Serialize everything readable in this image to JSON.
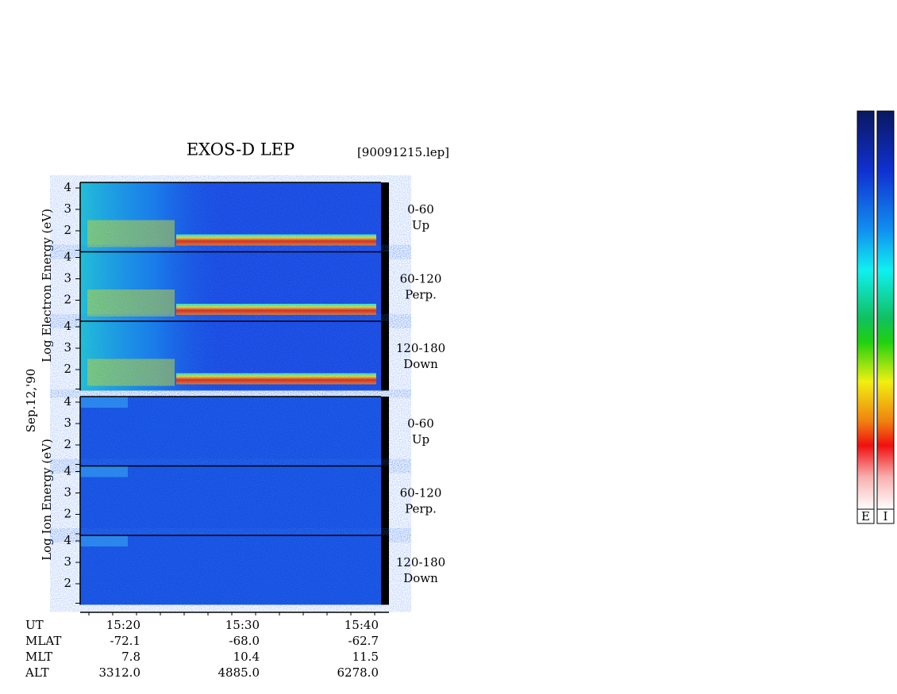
{
  "title": "EXOS-D LEP",
  "file": "[90091215.lep]",
  "electron": {
    "ylabel": "Log Electron Energy (eV)",
    "panels": [
      {
        "range": "0-60",
        "dir": "Up",
        "yticks": [
          "4",
          "3",
          "2"
        ]
      },
      {
        "range": "60-120",
        "dir": "Perp.",
        "yticks": [
          "4",
          "3",
          "2"
        ]
      },
      {
        "range": "120-180",
        "dir": "Down",
        "yticks": [
          "4",
          "3",
          "2"
        ]
      }
    ]
  },
  "date": "Sep.12,'90",
  "ion": {
    "ylabel": "Log Ion Energy (eV)",
    "panels": [
      {
        "range": "0-60",
        "dir": "Up",
        "yticks": [
          "4",
          "3",
          "2"
        ]
      },
      {
        "range": "60-120",
        "dir": "Perp.",
        "yticks": [
          "4",
          "3",
          "2"
        ]
      },
      {
        "range": "120-180",
        "dir": "Down",
        "yticks": [
          "4",
          "3",
          "2"
        ]
      }
    ]
  },
  "xaxis": {
    "rows": [
      {
        "name": "UT",
        "values": [
          "15:20",
          "15:30",
          "15:40"
        ]
      },
      {
        "name": "MLAT",
        "values": [
          "-72.1",
          "-68.0",
          "-62.7"
        ]
      },
      {
        "name": "MLT",
        "values": [
          "7.8",
          "10.4",
          "11.5"
        ]
      },
      {
        "name": "ALT",
        "values": [
          "3312.0",
          "4885.0",
          "6278.0"
        ]
      }
    ]
  },
  "colorbars": [
    "E",
    "I"
  ]
}
